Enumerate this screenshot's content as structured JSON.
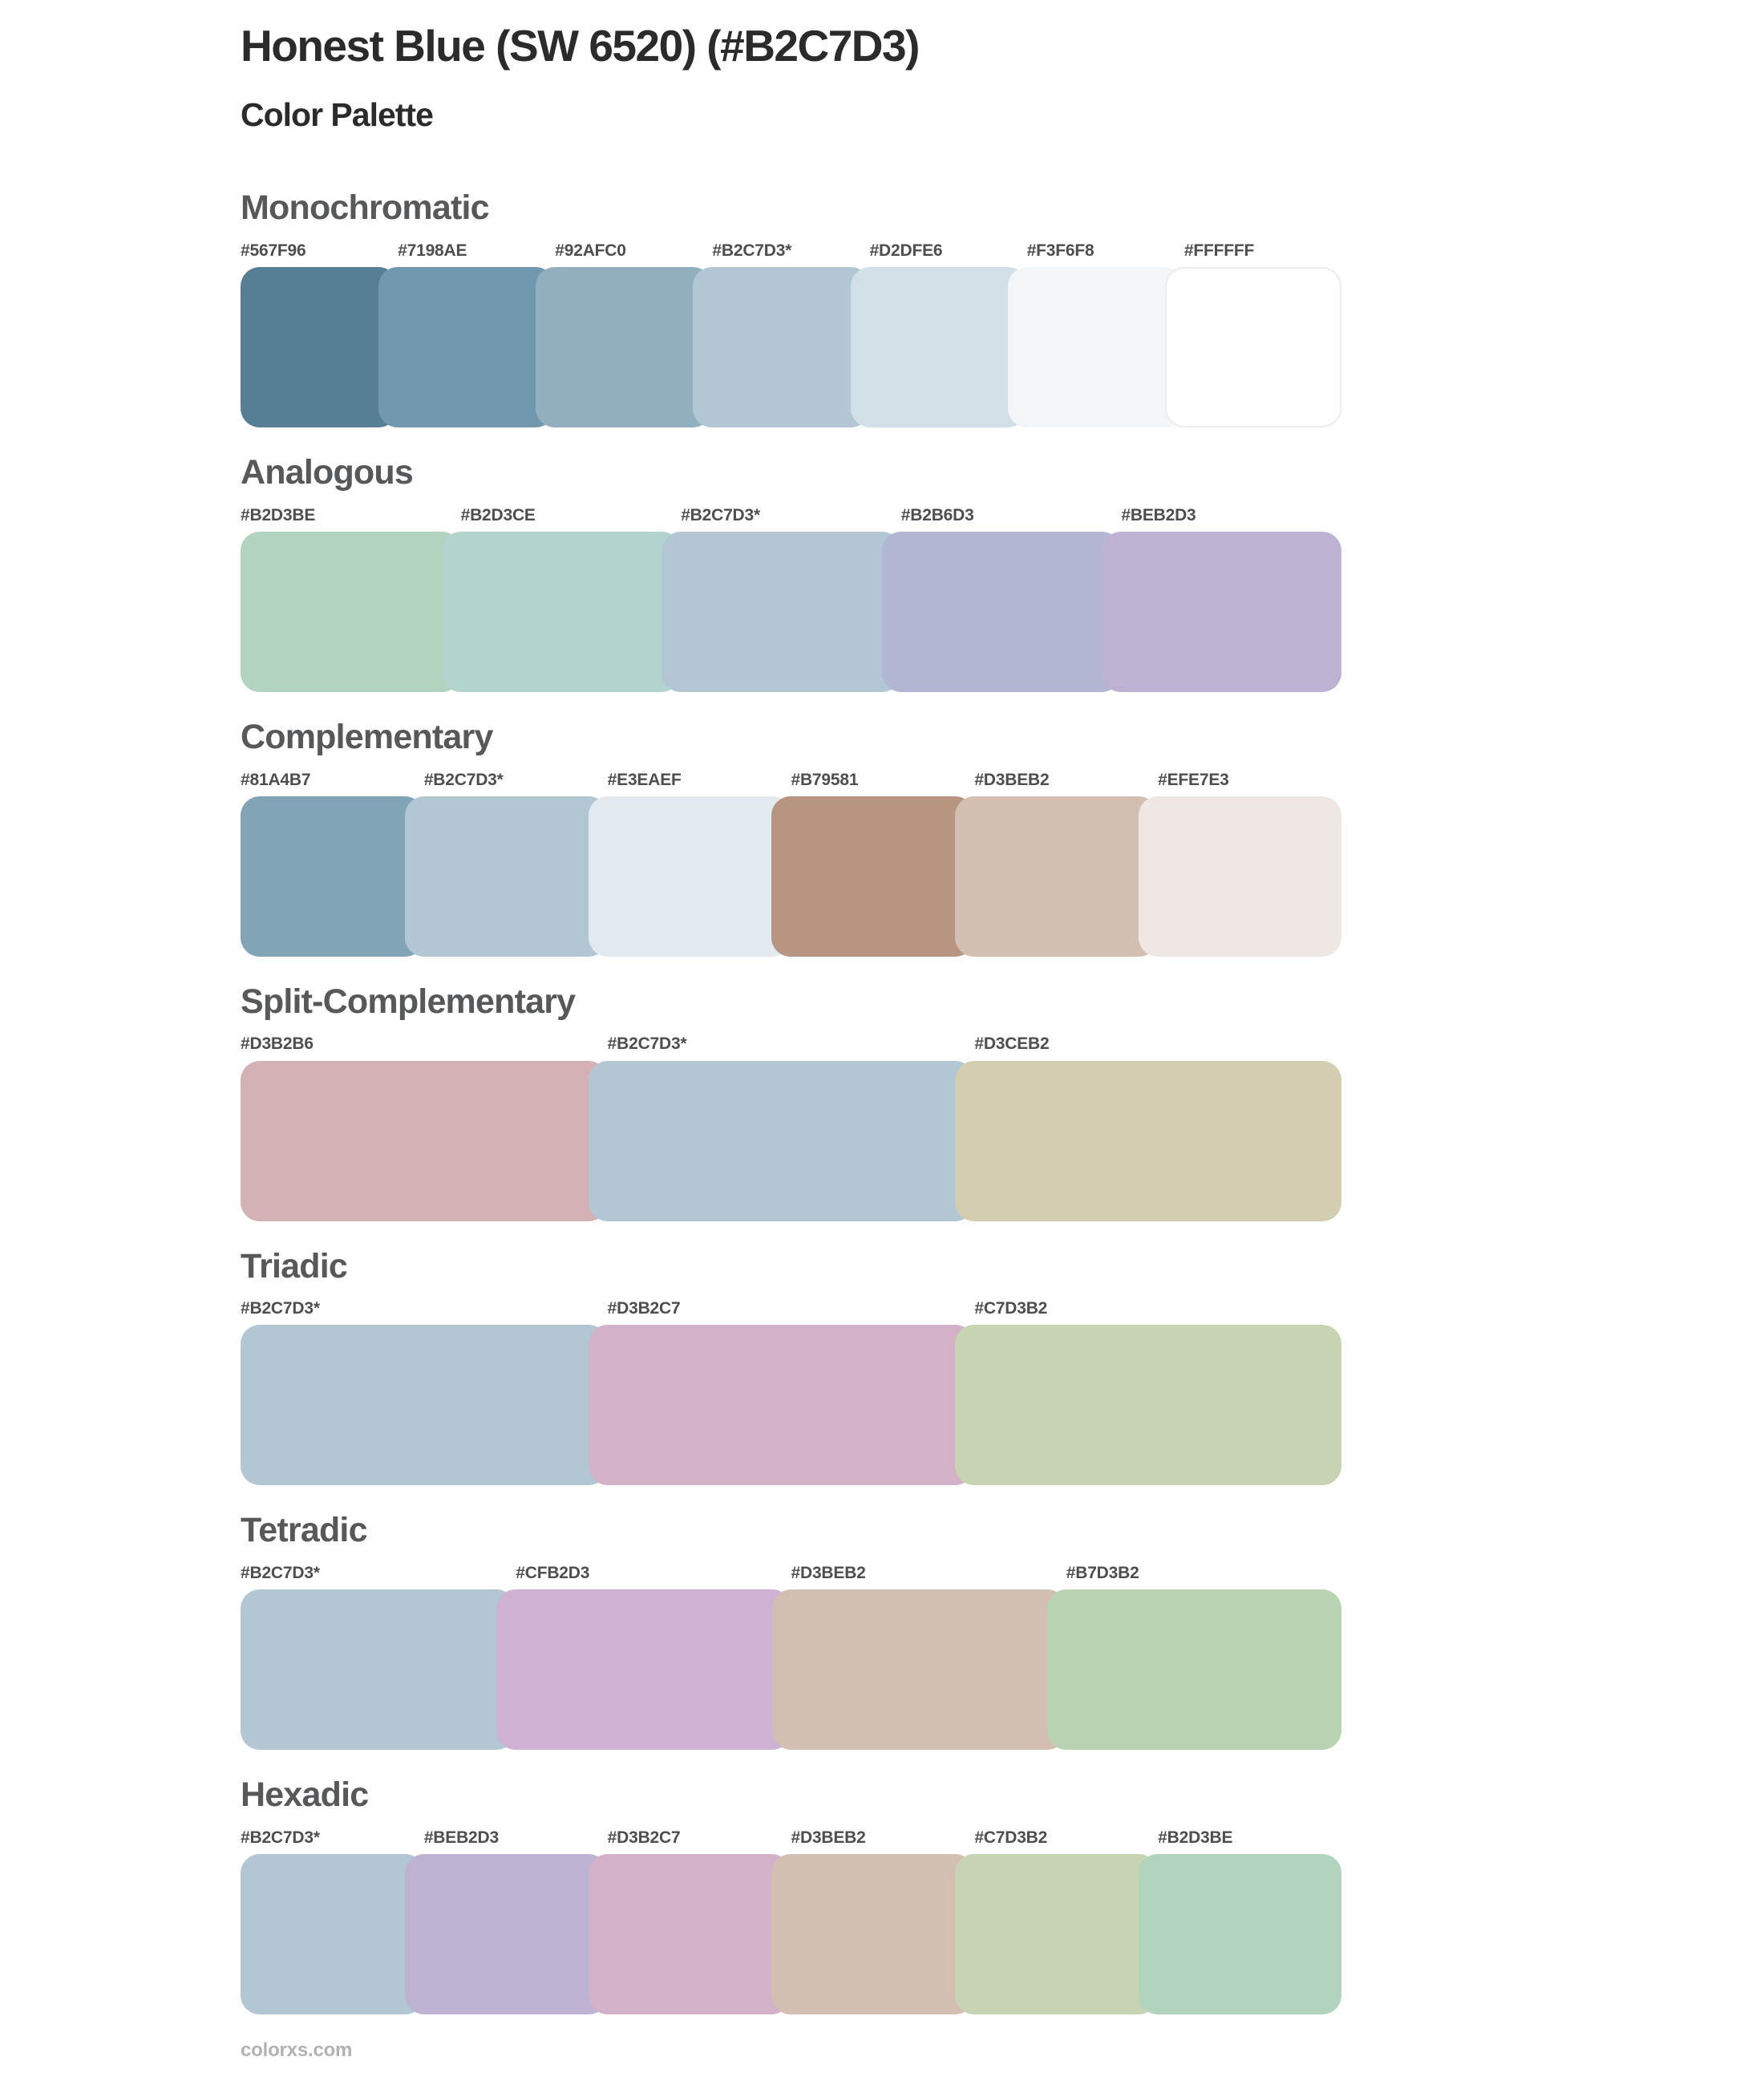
{
  "page": {
    "title": "Honest Blue (SW 6520) (#B2C7D3)",
    "subtitle": "Color Palette",
    "footer": "colorxs.com"
  },
  "theme": {
    "background": "#FFFFFF",
    "title_text": "#2B2B2B",
    "heading_text": "#56585A",
    "label_text": "#4C4E50",
    "footer_text": "#B3B0B0",
    "white_swatch_border": "#ECECEC",
    "base_color": "#B2C7D3"
  },
  "sections": [
    {
      "name": "Monochromatic",
      "swatches": [
        {
          "hex": "#567F96",
          "color": "#567F96"
        },
        {
          "hex": "#7198AE",
          "color": "#7198AE"
        },
        {
          "hex": "#92AFC0",
          "color": "#92AFC0"
        },
        {
          "hex": "#B2C7D3*",
          "color": "#B2C7D3"
        },
        {
          "hex": "#D2DFE6",
          "color": "#D2DFE6"
        },
        {
          "hex": "#F3F6F8",
          "color": "#F3F6F8"
        },
        {
          "hex": "#FFFFFF",
          "color": "#FFFFFF"
        }
      ]
    },
    {
      "name": "Analogous",
      "swatches": [
        {
          "hex": "#B2D3BE",
          "color": "#B2D3BE"
        },
        {
          "hex": "#B2D3CE",
          "color": "#B2D3CE"
        },
        {
          "hex": "#B2C7D3*",
          "color": "#B2C7D3"
        },
        {
          "hex": "#B2B6D3",
          "color": "#B2B6D3"
        },
        {
          "hex": "#BEB2D3",
          "color": "#BEB2D3"
        }
      ]
    },
    {
      "name": "Complementary",
      "swatches": [
        {
          "hex": "#81A4B7",
          "color": "#81A4B7"
        },
        {
          "hex": "#B2C7D3*",
          "color": "#B2C7D3"
        },
        {
          "hex": "#E3EAEF",
          "color": "#E3EAEF"
        },
        {
          "hex": "#B79581",
          "color": "#B79581"
        },
        {
          "hex": "#D3BEB2",
          "color": "#D3BEB2"
        },
        {
          "hex": "#EFE7E3",
          "color": "#EFE7E3"
        }
      ]
    },
    {
      "name": "Split-Complementary",
      "swatches": [
        {
          "hex": "#D3B2B6",
          "color": "#D3B2B6"
        },
        {
          "hex": "#B2C7D3*",
          "color": "#B2C7D3"
        },
        {
          "hex": "#D3CEB2",
          "color": "#D3CEB2"
        }
      ]
    },
    {
      "name": "Triadic",
      "swatches": [
        {
          "hex": "#B2C7D3*",
          "color": "#B2C7D3"
        },
        {
          "hex": "#D3B2C7",
          "color": "#D3B2C7"
        },
        {
          "hex": "#C7D3B2",
          "color": "#C7D3B2"
        }
      ]
    },
    {
      "name": "Tetradic",
      "swatches": [
        {
          "hex": "#B2C7D3*",
          "color": "#B2C7D3"
        },
        {
          "hex": "#CFB2D3",
          "color": "#CFB2D3"
        },
        {
          "hex": "#D3BEB2",
          "color": "#D3BEB2"
        },
        {
          "hex": "#B7D3B2",
          "color": "#B7D3B2"
        }
      ]
    },
    {
      "name": "Hexadic",
      "swatches": [
        {
          "hex": "#B2C7D3*",
          "color": "#B2C7D3"
        },
        {
          "hex": "#BEB2D3",
          "color": "#BEB2D3"
        },
        {
          "hex": "#D3B2C7",
          "color": "#D3B2C7"
        },
        {
          "hex": "#D3BEB2",
          "color": "#D3BEB2"
        },
        {
          "hex": "#C7D3B2",
          "color": "#C7D3B2"
        },
        {
          "hex": "#B2D3BE",
          "color": "#B2D3BE"
        }
      ]
    }
  ]
}
